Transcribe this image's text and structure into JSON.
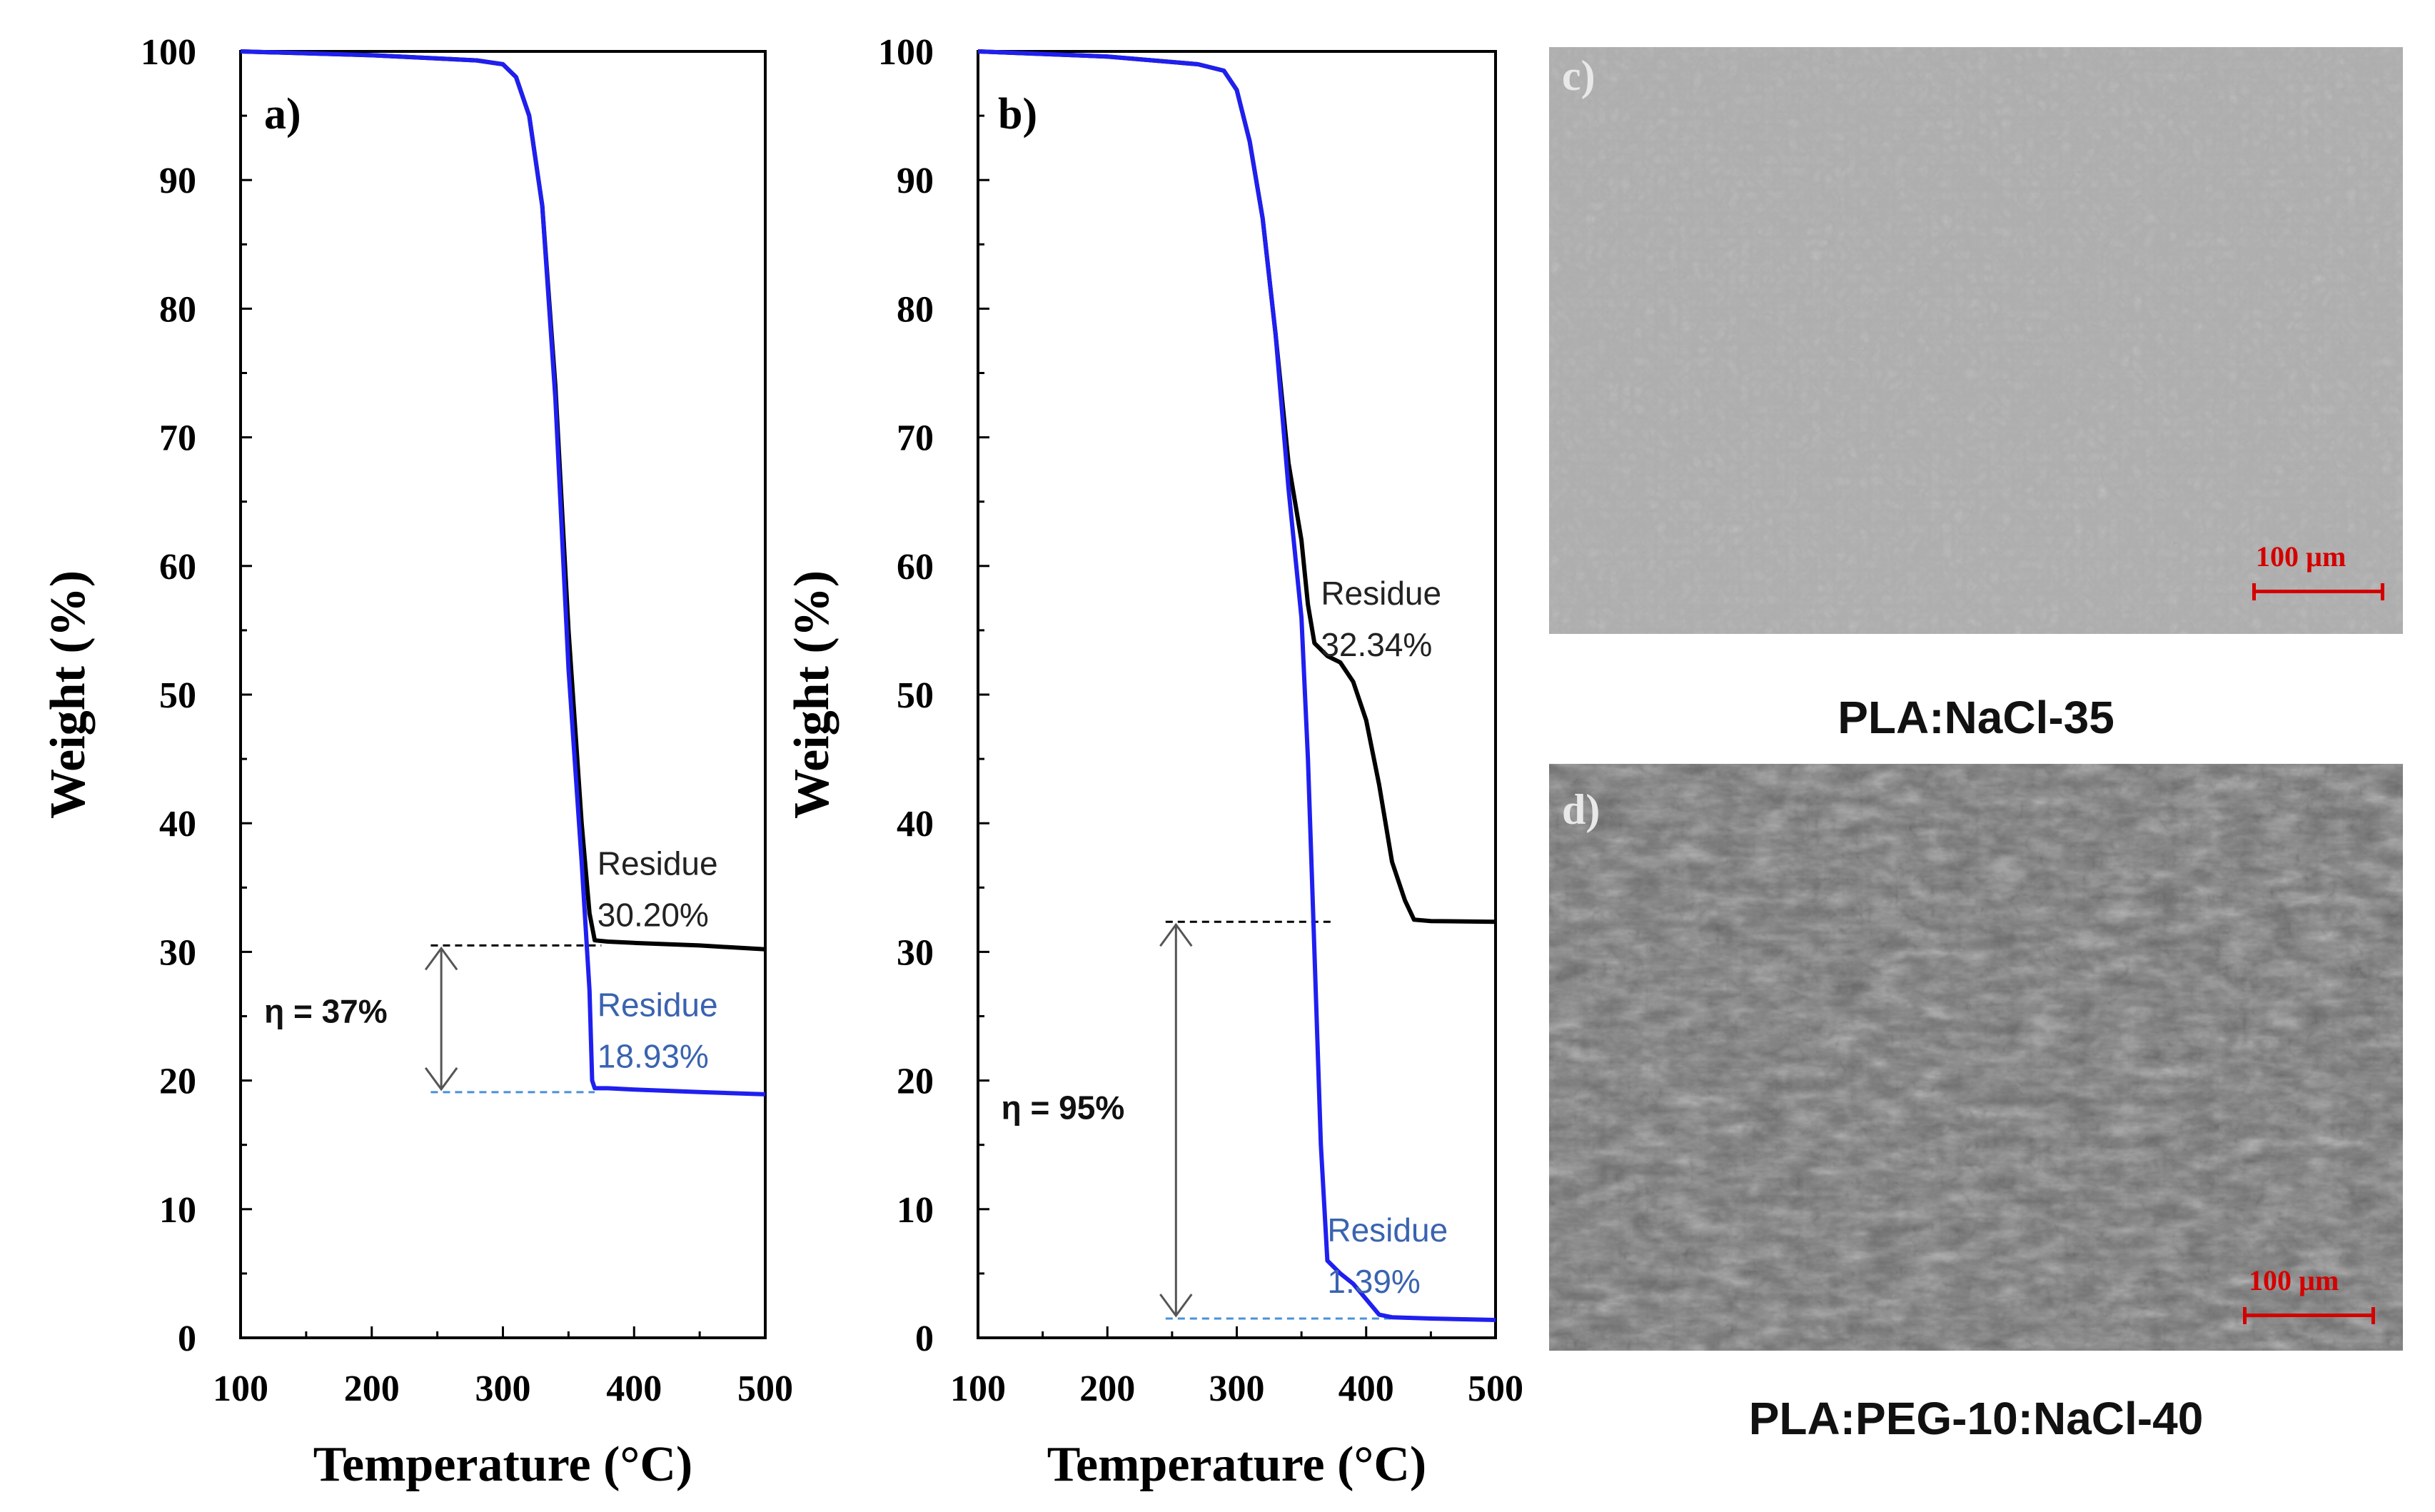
{
  "chart_data": [
    {
      "type": "line",
      "panel": "a)",
      "xlabel": "Temperature (°C)",
      "ylabel": "Weight (%)",
      "xlim": [
        100,
        500
      ],
      "ylim": [
        0,
        100
      ],
      "xticks": [
        100,
        200,
        300,
        400,
        500
      ],
      "yticks": [
        0,
        10,
        20,
        30,
        40,
        50,
        60,
        70,
        80,
        90,
        100
      ],
      "series": [
        {
          "color": "#000000",
          "x": [
            100,
            200,
            280,
            300,
            310,
            320,
            330,
            340,
            350,
            360,
            366,
            370,
            380,
            400,
            450,
            500
          ],
          "y": [
            100,
            99.7,
            99.3,
            99,
            98,
            95,
            88,
            74,
            55,
            40,
            33,
            30.9,
            30.8,
            30.7,
            30.5,
            30.2
          ]
        },
        {
          "color": "#1f1ff0",
          "x": [
            100,
            200,
            280,
            300,
            310,
            320,
            330,
            340,
            350,
            360,
            366,
            368,
            370,
            380,
            400,
            450,
            500
          ],
          "y": [
            100,
            99.7,
            99.3,
            99,
            98,
            95,
            88,
            73,
            52,
            37,
            27,
            20,
            19.4,
            19.4,
            19.3,
            19.1,
            18.93
          ]
        }
      ],
      "annotations": [
        {
          "text_line1": "Residue",
          "text_line2": "30.20%",
          "color": "#222222",
          "x": 372,
          "y": 36
        },
        {
          "text_line1": "Residue",
          "text_line2": "18.93%",
          "color": "#3a63b0",
          "x": 372,
          "y": 25
        },
        {
          "text": "η = 37%",
          "x": 118,
          "y": 24.5
        }
      ],
      "gap_lines": {
        "x_start": 245,
        "upper": 30.5,
        "lower": 19.1,
        "upper_color": "#000000",
        "lower_color": "#4a90d9"
      }
    },
    {
      "type": "line",
      "panel": "b)",
      "xlabel": "Temperature (°C)",
      "ylabel": "Weight (%)",
      "xlim": [
        100,
        500
      ],
      "ylim": [
        0,
        100
      ],
      "xticks": [
        100,
        200,
        300,
        400,
        500
      ],
      "yticks": [
        0,
        10,
        20,
        30,
        40,
        50,
        60,
        70,
        80,
        90,
        100
      ],
      "series": [
        {
          "color": "#000000",
          "x": [
            100,
            200,
            270,
            290,
            300,
            310,
            320,
            330,
            340,
            350,
            355,
            360,
            370,
            380,
            390,
            400,
            410,
            420,
            430,
            437,
            450,
            500
          ],
          "y": [
            100,
            99.6,
            99,
            98.5,
            97,
            93,
            87,
            78,
            68,
            62,
            57,
            54,
            53,
            52.5,
            51,
            48,
            43,
            37,
            34,
            32.5,
            32.4,
            32.34
          ]
        },
        {
          "color": "#1f1ff0",
          "x": [
            100,
            200,
            270,
            290,
            300,
            310,
            320,
            330,
            340,
            350,
            355,
            360,
            365,
            370,
            380,
            390,
            400,
            410,
            420,
            450,
            500
          ],
          "y": [
            100,
            99.6,
            99,
            98.5,
            97,
            93,
            87,
            78,
            66,
            56,
            45,
            30,
            15,
            6,
            5,
            4.2,
            3,
            1.8,
            1.6,
            1.5,
            1.39
          ]
        }
      ],
      "annotations": [
        {
          "text_line1": "Residue",
          "text_line2": "32.34%",
          "color": "#222222",
          "x": 365,
          "y": 57
        },
        {
          "text_line1": "Residue",
          "text_line2": "1.39%",
          "color": "#3a63b0",
          "x": 370,
          "y": 7.5
        },
        {
          "text": "η = 95%",
          "x": 118,
          "y": 17
        }
      ],
      "gap_lines": {
        "x_start": 245,
        "upper": 32.34,
        "lower": 1.5,
        "upper_color": "#000000",
        "lower_color": "#4a90d9"
      }
    }
  ],
  "sem_images": [
    {
      "panel": "c)",
      "scale_label": "100 µm",
      "caption": ""
    },
    {
      "panel": "d)",
      "scale_label": "100 µm",
      "caption": ""
    }
  ],
  "captions": {
    "c": "PLA:NaCl-35",
    "d": "PLA:PEG-10:NaCl-40"
  }
}
